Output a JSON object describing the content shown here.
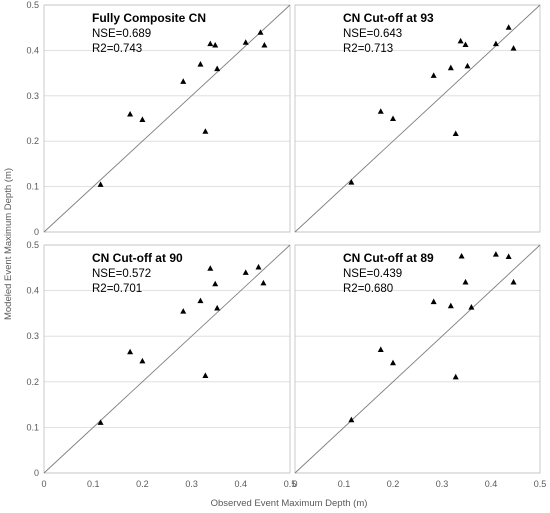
{
  "colors": {
    "gridline": "#d9d9d9",
    "frame": "#bfbfbf",
    "oneToOne": "#7f7f7f",
    "marker": "#000000"
  },
  "chart_data": {
    "type": "scatter",
    "xlabel": "Observed Event Maximum Depth (m)",
    "ylabel": "Modeled Event Maximum Depth (m)",
    "xlim": [
      0,
      0.5
    ],
    "ylim": [
      0,
      0.5
    ],
    "x_ticks": [
      "0",
      "0.1",
      "0.2",
      "0.3",
      "0.4",
      "0.5"
    ],
    "y_ticks": [
      "0",
      "0.1",
      "0.2",
      "0.3",
      "0.4",
      "0.5"
    ],
    "grid": true,
    "reference_line": "1:1",
    "marker": "triangle",
    "panels": [
      {
        "title": "Fully Composite CN",
        "nse": "NSE=0.689",
        "r2": "R2=0.743",
        "points": [
          [
            0.115,
            0.105
          ],
          [
            0.175,
            0.26
          ],
          [
            0.2,
            0.248
          ],
          [
            0.283,
            0.332
          ],
          [
            0.318,
            0.37
          ],
          [
            0.328,
            0.222
          ],
          [
            0.338,
            0.415
          ],
          [
            0.348,
            0.412
          ],
          [
            0.352,
            0.36
          ],
          [
            0.41,
            0.418
          ],
          [
            0.44,
            0.44
          ],
          [
            0.448,
            0.412
          ]
        ]
      },
      {
        "title": "CN Cut-off at 93",
        "nse": "NSE=0.643",
        "r2": "R2=0.713",
        "points": [
          [
            0.115,
            0.11
          ],
          [
            0.175,
            0.266
          ],
          [
            0.2,
            0.25
          ],
          [
            0.283,
            0.345
          ],
          [
            0.318,
            0.362
          ],
          [
            0.328,
            0.217
          ],
          [
            0.338,
            0.421
          ],
          [
            0.348,
            0.413
          ],
          [
            0.352,
            0.366
          ],
          [
            0.41,
            0.415
          ],
          [
            0.436,
            0.451
          ],
          [
            0.446,
            0.405
          ]
        ]
      },
      {
        "title": "CN Cut-off at 90",
        "nse": "NSE=0.572",
        "r2": "R2=0.701",
        "points": [
          [
            0.115,
            0.111
          ],
          [
            0.175,
            0.266
          ],
          [
            0.2,
            0.246
          ],
          [
            0.283,
            0.355
          ],
          [
            0.318,
            0.378
          ],
          [
            0.328,
            0.214
          ],
          [
            0.338,
            0.449
          ],
          [
            0.348,
            0.415
          ],
          [
            0.352,
            0.362
          ],
          [
            0.41,
            0.44
          ],
          [
            0.436,
            0.452
          ],
          [
            0.446,
            0.417
          ]
        ]
      },
      {
        "title": "CN Cut-off at 89",
        "nse": "NSE=0.439",
        "r2": "R2=0.680",
        "points": [
          [
            0.115,
            0.117
          ],
          [
            0.175,
            0.271
          ],
          [
            0.2,
            0.242
          ],
          [
            0.283,
            0.376
          ],
          [
            0.318,
            0.367
          ],
          [
            0.328,
            0.211
          ],
          [
            0.34,
            0.476
          ],
          [
            0.348,
            0.419
          ],
          [
            0.36,
            0.364
          ],
          [
            0.41,
            0.48
          ],
          [
            0.436,
            0.475
          ],
          [
            0.446,
            0.419
          ]
        ]
      }
    ]
  }
}
